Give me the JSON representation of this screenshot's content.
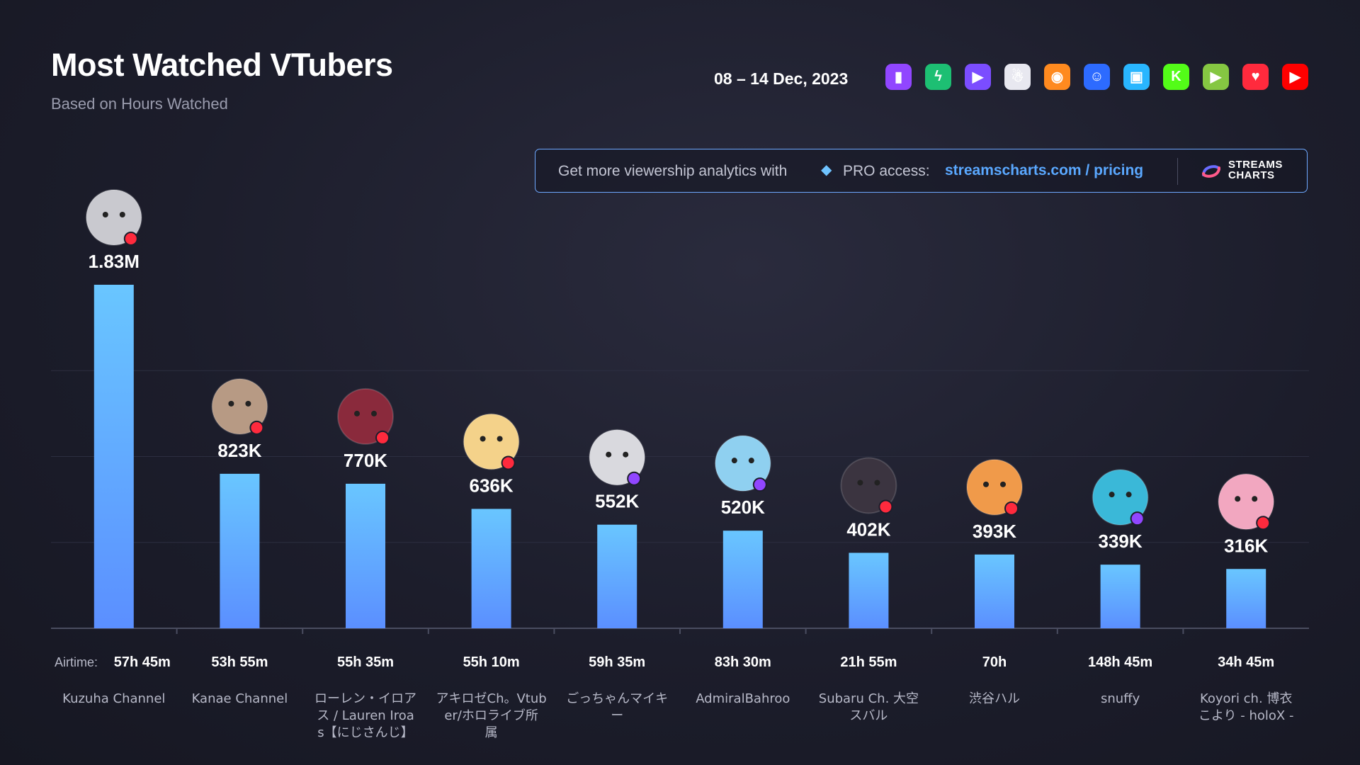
{
  "header": {
    "title": "Most Watched VTubers",
    "subtitle": "Based on Hours Watched",
    "date_range": "08 – 14 Dec, 2023"
  },
  "platforms": [
    {
      "icon": "twitch-icon",
      "color": "#9146ff",
      "glyph": "▮"
    },
    {
      "icon": "trovo-icon",
      "color": "#1dbf73",
      "glyph": "ϟ"
    },
    {
      "icon": "kick-alt-icon",
      "color": "#7b4dff",
      "glyph": "▶"
    },
    {
      "icon": "ghost-icon",
      "color": "#e8e8f0",
      "glyph": "☃"
    },
    {
      "icon": "nimo-icon",
      "color": "#ff8a1f",
      "glyph": "◉"
    },
    {
      "icon": "bot-icon",
      "color": "#2d6bff",
      "glyph": "☺"
    },
    {
      "icon": "camera-icon",
      "color": "#29b6ff",
      "glyph": "▣"
    },
    {
      "icon": "kick-icon",
      "color": "#53fc18",
      "glyph": "K"
    },
    {
      "icon": "rumble-icon",
      "color": "#85c742",
      "glyph": "▶"
    },
    {
      "icon": "heart-icon",
      "color": "#ff2a3d",
      "glyph": "♥"
    },
    {
      "icon": "youtube-icon",
      "color": "#ff0000",
      "glyph": "▶"
    }
  ],
  "promo": {
    "text": "Get more viewership analytics with",
    "pro": "PRO access:",
    "link": "streamscharts.com / pricing",
    "logo_line1": "STREAMS",
    "logo_line2": "CHARTS"
  },
  "airtime_label": "Airtime:",
  "colors": {
    "bar_top": "#69c6ff",
    "bar_bottom": "#5b8fff",
    "youtube_badge": "#ff2a3d",
    "twitch_badge": "#9146ff"
  },
  "chart_data": {
    "type": "bar",
    "ylim": [
      0,
      1830000
    ],
    "bars": [
      {
        "name": "Kuzuha Channel",
        "value": 1830000,
        "value_label": "1.83M",
        "airtime": "57h 45m",
        "platform": "youtube",
        "avatar": "#c9c9cf"
      },
      {
        "name": "Kanae Channel",
        "value": 823000,
        "value_label": "823K",
        "airtime": "53h 55m",
        "platform": "youtube",
        "avatar": "#b79a84"
      },
      {
        "name": "ローレン・イロアス / Lauren Iroas【にじさんじ】",
        "value": 770000,
        "value_label": "770K",
        "airtime": "55h 35m",
        "platform": "youtube",
        "avatar": "#8a2a3c"
      },
      {
        "name": "アキロゼCh。Vtuber/ホロライブ所属",
        "value": 636000,
        "value_label": "636K",
        "airtime": "55h 10m",
        "platform": "youtube",
        "avatar": "#f4d28a"
      },
      {
        "name": "ごっちゃんマイキー",
        "value": 552000,
        "value_label": "552K",
        "airtime": "59h 35m",
        "platform": "twitch",
        "avatar": "#d9d9de"
      },
      {
        "name": "AdmiralBahroo",
        "value": 520000,
        "value_label": "520K",
        "airtime": "83h 30m",
        "platform": "twitch",
        "avatar": "#8fd0f0"
      },
      {
        "name": "Subaru Ch. 大空スバル",
        "value": 402000,
        "value_label": "402K",
        "airtime": "21h 55m",
        "platform": "youtube",
        "avatar": "#3b3440"
      },
      {
        "name": "渋谷ハル",
        "value": 393000,
        "value_label": "393K",
        "airtime": "70h",
        "platform": "youtube",
        "avatar": "#f09a4a"
      },
      {
        "name": "snuffy",
        "value": 339000,
        "value_label": "339K",
        "airtime": "148h 45m",
        "platform": "twitch",
        "avatar": "#3ab8d8"
      },
      {
        "name": "Koyori ch. 博衣こより - holoX -",
        "value": 316000,
        "value_label": "316K",
        "airtime": "34h 45m",
        "platform": "youtube",
        "avatar": "#f2a7c0"
      }
    ]
  }
}
